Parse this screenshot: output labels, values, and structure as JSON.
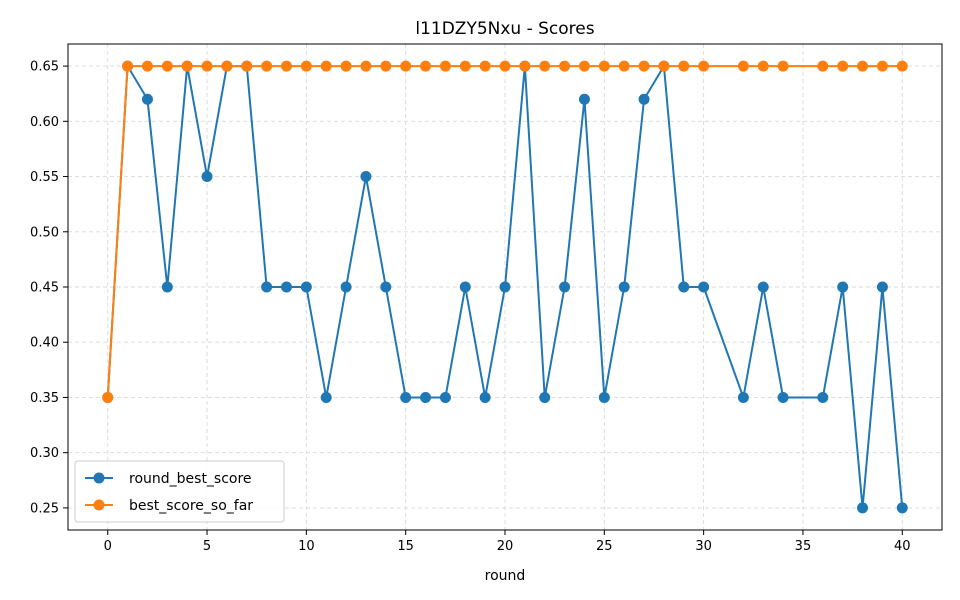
{
  "chart_data": {
    "type": "line",
    "title": "l11DZY5Nxu - Scores",
    "xlabel": "round",
    "ylabel": "",
    "xlim": [
      -2,
      42
    ],
    "ylim": [
      0.23,
      0.67
    ],
    "xticks": [
      0,
      5,
      10,
      15,
      20,
      25,
      30,
      35,
      40
    ],
    "yticks": [
      0.25,
      0.3,
      0.35,
      0.4,
      0.45,
      0.5,
      0.55,
      0.6,
      0.65
    ],
    "grid": true,
    "legend_position": "lower-left",
    "series": [
      {
        "name": "round_best_score",
        "color": "#1f77b4",
        "x": [
          0,
          1,
          2,
          3,
          4,
          5,
          6,
          7,
          8,
          9,
          10,
          11,
          12,
          13,
          14,
          15,
          16,
          17,
          18,
          19,
          20,
          21,
          22,
          23,
          24,
          25,
          26,
          27,
          28,
          29,
          30,
          32,
          33,
          34,
          36,
          37,
          38,
          39,
          40
        ],
        "y": [
          0.35,
          0.65,
          0.62,
          0.45,
          0.65,
          0.55,
          0.65,
          0.65,
          0.45,
          0.45,
          0.45,
          0.35,
          0.45,
          0.55,
          0.45,
          0.35,
          0.35,
          0.35,
          0.45,
          0.35,
          0.45,
          0.65,
          0.35,
          0.45,
          0.62,
          0.35,
          0.45,
          0.62,
          0.65,
          0.45,
          0.45,
          0.35,
          0.45,
          0.35,
          0.35,
          0.45,
          0.25,
          0.45,
          0.25
        ]
      },
      {
        "name": "best_score_so_far",
        "color": "#ff7f0e",
        "x": [
          0,
          1,
          2,
          3,
          4,
          5,
          6,
          7,
          8,
          9,
          10,
          11,
          12,
          13,
          14,
          15,
          16,
          17,
          18,
          19,
          20,
          21,
          22,
          23,
          24,
          25,
          26,
          27,
          28,
          29,
          30,
          32,
          33,
          34,
          36,
          37,
          38,
          39,
          40
        ],
        "y": [
          0.35,
          0.65,
          0.65,
          0.65,
          0.65,
          0.65,
          0.65,
          0.65,
          0.65,
          0.65,
          0.65,
          0.65,
          0.65,
          0.65,
          0.65,
          0.65,
          0.65,
          0.65,
          0.65,
          0.65,
          0.65,
          0.65,
          0.65,
          0.65,
          0.65,
          0.65,
          0.65,
          0.65,
          0.65,
          0.65,
          0.65,
          0.65,
          0.65,
          0.65,
          0.65,
          0.65,
          0.65,
          0.65,
          0.65
        ]
      }
    ]
  }
}
